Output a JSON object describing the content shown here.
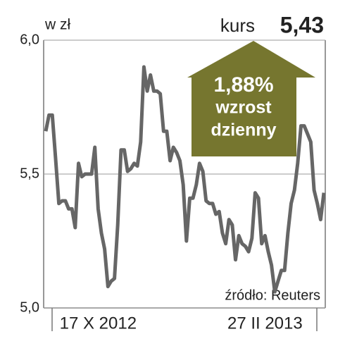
{
  "chart_data": {
    "type": "line",
    "title": "kurs",
    "price": "5,43",
    "unit_label": "w zł",
    "annotation": [
      "1,88%",
      "wzrost",
      "dzienny"
    ],
    "source": "źródło: Reuters",
    "categories": [
      null,
      null,
      null,
      null,
      null,
      null,
      null,
      null,
      null,
      null,
      null,
      null,
      null,
      null,
      null,
      null,
      "17 X 2012",
      null,
      null,
      null,
      null,
      null,
      null,
      null,
      null,
      null,
      null,
      null,
      null,
      null,
      null,
      null,
      null,
      null,
      null,
      null,
      null,
      null,
      null,
      null,
      null,
      null,
      null,
      null,
      null,
      null,
      null,
      null,
      null,
      null,
      null,
      null,
      null,
      null,
      null,
      null,
      null,
      null,
      null,
      null,
      null,
      null,
      null,
      null,
      null,
      null,
      null,
      "27 II 2013",
      null,
      null,
      null,
      null,
      null,
      null,
      null,
      null,
      null,
      null,
      null,
      null,
      null,
      null,
      null,
      null,
      null,
      null
    ],
    "values": [
      5.66,
      5.72,
      5.72,
      5.56,
      5.39,
      5.4,
      5.4,
      5.37,
      5.37,
      5.3,
      5.54,
      5.49,
      5.5,
      5.5,
      5.5,
      5.6,
      5.37,
      5.28,
      5.22,
      5.08,
      5.1,
      5.11,
      5.31,
      5.59,
      5.59,
      5.51,
      5.52,
      5.54,
      5.53,
      5.62,
      5.9,
      5.81,
      5.87,
      5.81,
      5.81,
      5.8,
      5.66,
      5.66,
      5.55,
      5.6,
      5.58,
      5.55,
      5.46,
      5.25,
      5.41,
      5.41,
      5.46,
      5.54,
      5.51,
      5.4,
      5.39,
      5.39,
      5.35,
      5.36,
      5.28,
      5.24,
      5.33,
      5.31,
      5.18,
      5.27,
      5.24,
      5.23,
      5.21,
      5.26,
      5.43,
      5.41,
      5.24,
      5.27,
      5.21,
      5.16,
      5.06,
      5.1,
      5.14,
      5.14,
      5.28,
      5.39,
      5.44,
      5.54,
      5.68,
      5.68,
      5.65,
      5.62,
      5.44,
      5.39,
      5.33,
      5.43
    ],
    "color": "#666666",
    "arrow_color": "#76762f",
    "ylim": [
      5,
      6
    ],
    "yticks": [
      {
        "value": 5,
        "label": "5,0"
      },
      {
        "value": 5.5,
        "label": "5,5"
      },
      {
        "value": 6,
        "label": "6,0"
      }
    ],
    "grid": true
  }
}
